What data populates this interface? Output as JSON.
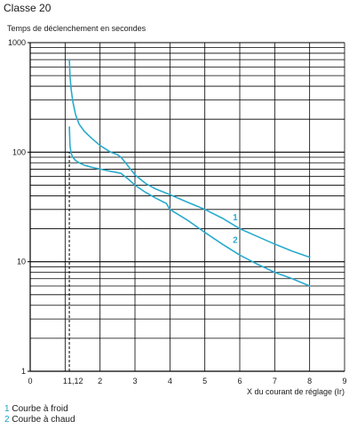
{
  "page": {
    "title": "Classe 20"
  },
  "colors": {
    "curve": "#29aacd",
    "grid": "#000000",
    "text": "#1a1a1a",
    "legend_number": "#1aa3c8"
  },
  "chart_data": {
    "type": "line",
    "title": "",
    "ylabel": "Temps de déclenchement en secondes",
    "xlabel": "X du courant de réglage (Ir)",
    "yscale": "log",
    "xlim": [
      0,
      9
    ],
    "ylim": [
      1,
      1000
    ],
    "grid": true,
    "x_ticks": [
      0,
      1,
      1.12,
      2,
      3,
      4,
      5,
      6,
      7,
      8,
      9
    ],
    "x_tick_labels": [
      "0",
      "1",
      "1,12",
      "2",
      "3",
      "4",
      "5",
      "6",
      "7",
      "8",
      "9"
    ],
    "y_ticks": [
      1,
      10,
      100,
      1000
    ],
    "y_tick_labels": [
      "1",
      "10",
      "100",
      "1000"
    ],
    "reference_line": {
      "x": 1.12,
      "style": "dashed",
      "from": 1,
      "to": 100
    },
    "series": [
      {
        "name": "1",
        "x": [
          1.12,
          1.14,
          1.17,
          1.22,
          1.3,
          1.4,
          1.55,
          1.75,
          2.0,
          2.3,
          2.5,
          2.6,
          2.8,
          3.0,
          3.3,
          3.6,
          4.0,
          4.5,
          5.0,
          5.5,
          6.0,
          6.5,
          7.0,
          7.5,
          8.0
        ],
        "y": [
          700,
          500,
          380,
          290,
          220,
          180,
          155,
          135,
          115,
          100,
          95,
          90,
          75,
          62,
          52,
          46,
          41,
          35,
          30,
          25,
          20,
          17,
          14.5,
          12.5,
          11
        ]
      },
      {
        "name": "2",
        "x": [
          1.12,
          1.14,
          1.17,
          1.22,
          1.3,
          1.4,
          1.55,
          1.75,
          2.0,
          2.3,
          2.6,
          2.8,
          3.0,
          3.3,
          3.6,
          3.9,
          4.0,
          4.5,
          5.0,
          5.5,
          6.0,
          6.5,
          7.0,
          7.5,
          8.0
        ],
        "y": [
          170,
          115,
          98,
          90,
          84,
          80,
          76,
          73,
          70,
          67,
          64,
          57,
          50,
          43,
          38,
          34,
          30,
          24,
          18.5,
          14.5,
          11.5,
          9.5,
          8,
          7,
          6
        ]
      }
    ],
    "curve_labels": [
      {
        "text": "1",
        "x": 5.8,
        "y": 24
      },
      {
        "text": "2",
        "x": 5.8,
        "y": 14.8
      }
    ]
  },
  "legend": {
    "items": [
      {
        "number": "1",
        "text": "Courbe à froid"
      },
      {
        "number": "2",
        "text": "Courbe à chaud"
      }
    ]
  }
}
